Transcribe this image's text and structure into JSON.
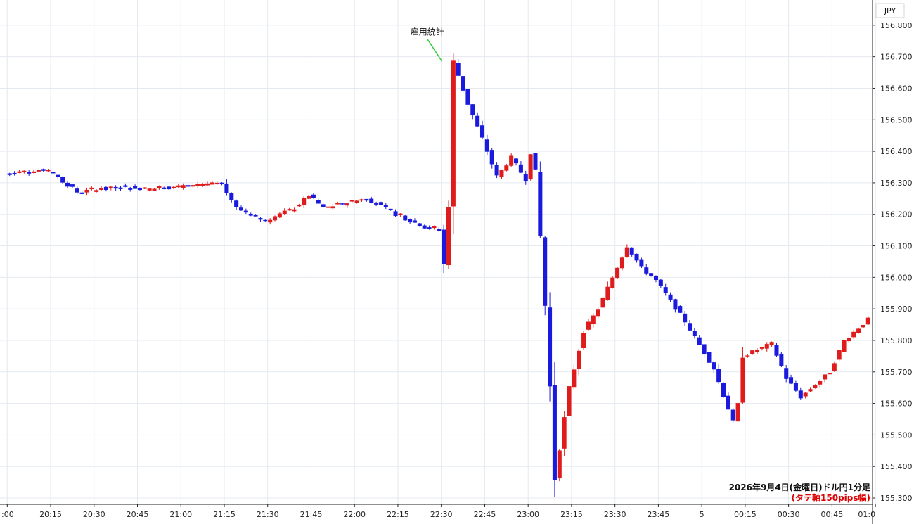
{
  "chart_data": {
    "type": "candlestick",
    "currency": "JPY",
    "ylim": [
      155.28,
      156.88
    ],
    "y_ticks": [
      "156.800",
      "156.700",
      "156.600",
      "156.500",
      "156.400",
      "156.300",
      "156.200",
      "156.100",
      "156.000",
      "155.900",
      "155.800",
      "155.700",
      "155.600",
      "155.500",
      "155.400",
      "155.300"
    ],
    "x_ticks": [
      ":00",
      "20:15",
      "20:30",
      "20:45",
      "21:00",
      "21:15",
      "21:30",
      "21:45",
      "22:00",
      "22:15",
      "22:30",
      "22:45",
      "23:00",
      "23:15",
      "23:30",
      "23:45",
      "5",
      "00:15",
      "00:30",
      "00:45",
      "01:0"
    ],
    "x_range_minutes": [
      -0.5,
      59.8
    ],
    "annotation": {
      "text": "雇用統計",
      "time_minute": 30,
      "price": 156.685
    },
    "caption_line1": "2026年9月4日(金曜日)ドル円1分足",
    "caption_line2": "(タテ軸150pips幅)",
    "colors": {
      "up": "#e01b1b",
      "down": "#1a1adf",
      "grid": "#e4eaf0",
      "annotation_line": "#33cc33"
    },
    "price_path": [
      [
        0,
        156.33
      ],
      [
        3,
        156.34
      ],
      [
        5,
        156.27
      ],
      [
        8,
        156.29
      ],
      [
        10,
        156.28
      ],
      [
        13,
        156.29
      ],
      [
        15,
        156.3
      ],
      [
        16,
        156.22
      ],
      [
        18,
        156.18
      ],
      [
        20,
        156.22
      ],
      [
        21,
        156.26
      ],
      [
        22,
        156.22
      ],
      [
        24,
        156.24
      ],
      [
        25,
        156.25
      ],
      [
        27,
        156.2
      ],
      [
        29,
        156.16
      ],
      [
        30,
        156.15
      ],
      [
        30.5,
        155.99
      ],
      [
        31,
        156.685
      ],
      [
        32,
        156.55
      ],
      [
        33,
        156.44
      ],
      [
        34,
        156.32
      ],
      [
        35,
        156.38
      ],
      [
        36,
        156.31
      ],
      [
        36.5,
        156.44
      ],
      [
        37,
        156.13
      ],
      [
        37.5,
        155.8
      ],
      [
        38,
        155.36
      ],
      [
        39,
        155.65
      ],
      [
        40,
        155.83
      ],
      [
        41,
        155.9
      ],
      [
        42,
        156.0
      ],
      [
        43,
        156.1
      ],
      [
        44,
        156.03
      ],
      [
        45,
        155.99
      ],
      [
        47,
        155.86
      ],
      [
        49,
        155.71
      ],
      [
        50.5,
        155.52
      ],
      [
        51,
        155.75
      ],
      [
        53,
        155.79
      ],
      [
        54,
        155.68
      ],
      [
        55,
        155.62
      ],
      [
        57,
        155.7
      ],
      [
        58,
        155.8
      ],
      [
        60,
        155.88
      ],
      [
        62,
        156.0
      ],
      [
        64,
        156.1
      ],
      [
        66,
        156.1
      ],
      [
        68,
        156.05
      ],
      [
        70,
        156.0
      ],
      [
        71.5,
        155.88
      ],
      [
        73,
        155.98
      ],
      [
        75,
        156.08
      ],
      [
        76,
        156.18
      ],
      [
        78,
        156.12
      ],
      [
        80,
        156.09
      ],
      [
        82,
        156.04
      ],
      [
        84,
        155.98
      ],
      [
        86,
        156.03
      ],
      [
        88,
        156.06
      ],
      [
        90,
        156.09
      ],
      [
        92,
        156.07
      ],
      [
        94,
        156.04
      ],
      [
        95,
        156.1
      ],
      [
        96,
        156.08
      ]
    ]
  }
}
